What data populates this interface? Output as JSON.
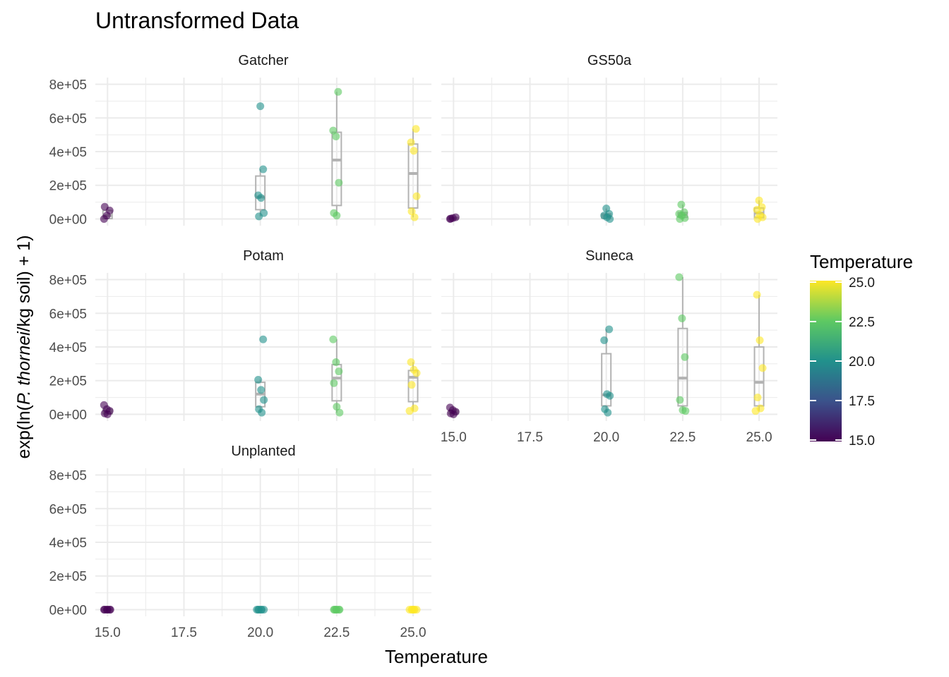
{
  "chart_data": {
    "type": "scatter",
    "title": "Untransformed Data",
    "xlabel": "Temperature",
    "ylabel_parts": [
      "exp(ln(",
      "P. thornei",
      "/kg soil) + 1)"
    ],
    "x_ticks": [
      "15.0",
      "17.5",
      "20.0",
      "22.5",
      "25.0"
    ],
    "y_ticks": [
      "0e+00",
      "2e+05",
      "4e+05",
      "6e+05",
      "8e+05"
    ],
    "xlim": [
      14.6,
      25.6
    ],
    "ylim": [
      -40000,
      840000
    ],
    "grid": true,
    "legend": {
      "title": "Temperature",
      "position": "right",
      "ticks": [
        "15.0",
        "17.5",
        "20.0",
        "22.5",
        "25.0"
      ],
      "range": [
        15,
        25
      ]
    },
    "panels": [
      {
        "name": "Gatcher",
        "points": [
          [
            15,
            0
          ],
          [
            15,
            20000
          ],
          [
            15,
            50000
          ],
          [
            15,
            72000
          ],
          [
            20,
            670000
          ],
          [
            20,
            295000
          ],
          [
            20,
            140000
          ],
          [
            20,
            125000
          ],
          [
            20,
            35000
          ],
          [
            20,
            15000
          ],
          [
            22.5,
            755000
          ],
          [
            22.5,
            525000
          ],
          [
            22.5,
            490000
          ],
          [
            22.5,
            215000
          ],
          [
            22.5,
            35000
          ],
          [
            22.5,
            20000
          ],
          [
            25,
            535000
          ],
          [
            25,
            455000
          ],
          [
            25,
            405000
          ],
          [
            25,
            135000
          ],
          [
            25,
            45000
          ],
          [
            25,
            10000
          ]
        ],
        "boxes": [
          {
            "x": 15,
            "q1": 2000,
            "median": 20000,
            "q3": 50000,
            "lo": 0,
            "hi": 72000
          },
          {
            "x": 20,
            "q1": 55000,
            "median": 130000,
            "q3": 255000,
            "lo": 15000,
            "hi": 295000
          },
          {
            "x": 22.5,
            "q1": 80000,
            "median": 350000,
            "q3": 515000,
            "lo": 20000,
            "hi": 755000
          },
          {
            "x": 25,
            "q1": 65000,
            "median": 270000,
            "q3": 445000,
            "lo": 10000,
            "hi": 535000
          }
        ]
      },
      {
        "name": "GS50a",
        "points": [
          [
            15,
            0
          ],
          [
            15,
            5000
          ],
          [
            15,
            10000
          ],
          [
            15,
            2000
          ],
          [
            20,
            62000
          ],
          [
            20,
            30000
          ],
          [
            20,
            20000
          ],
          [
            20,
            10000
          ],
          [
            20,
            0
          ],
          [
            22.5,
            85000
          ],
          [
            22.5,
            40000
          ],
          [
            22.5,
            30000
          ],
          [
            22.5,
            20000
          ],
          [
            22.5,
            5000
          ],
          [
            22.5,
            0
          ],
          [
            25,
            110000
          ],
          [
            25,
            70000
          ],
          [
            25,
            55000
          ],
          [
            25,
            25000
          ],
          [
            25,
            10000
          ],
          [
            25,
            0
          ]
        ],
        "boxes": [
          {
            "x": 15,
            "q1": 0,
            "median": 3000,
            "q3": 8000,
            "lo": 0,
            "hi": 10000
          },
          {
            "x": 20,
            "q1": 5000,
            "median": 20000,
            "q3": 30000,
            "lo": 0,
            "hi": 62000
          },
          {
            "x": 22.5,
            "q1": 10000,
            "median": 25000,
            "q3": 38000,
            "lo": 0,
            "hi": 85000
          },
          {
            "x": 25,
            "q1": 8000,
            "median": 35000,
            "q3": 65000,
            "lo": 0,
            "hi": 110000
          }
        ]
      },
      {
        "name": "Potam",
        "points": [
          [
            15,
            55000
          ],
          [
            15,
            30000
          ],
          [
            15,
            20000
          ],
          [
            15,
            5000
          ],
          [
            15,
            0
          ],
          [
            20,
            445000
          ],
          [
            20,
            205000
          ],
          [
            20,
            145000
          ],
          [
            20,
            85000
          ],
          [
            20,
            30000
          ],
          [
            20,
            10000
          ],
          [
            22.5,
            445000
          ],
          [
            22.5,
            310000
          ],
          [
            22.5,
            255000
          ],
          [
            22.5,
            185000
          ],
          [
            22.5,
            45000
          ],
          [
            22.5,
            10000
          ],
          [
            25,
            310000
          ],
          [
            25,
            265000
          ],
          [
            25,
            245000
          ],
          [
            25,
            175000
          ],
          [
            25,
            35000
          ],
          [
            25,
            20000
          ]
        ],
        "boxes": [
          {
            "x": 15,
            "q1": 2000,
            "median": 15000,
            "q3": 30000,
            "lo": 0,
            "hi": 55000
          },
          {
            "x": 20,
            "q1": 45000,
            "median": 120000,
            "q3": 190000,
            "lo": 10000,
            "hi": 205000
          },
          {
            "x": 22.5,
            "q1": 80000,
            "median": 215000,
            "q3": 295000,
            "lo": 10000,
            "hi": 445000
          },
          {
            "x": 25,
            "q1": 75000,
            "median": 220000,
            "q3": 260000,
            "lo": 20000,
            "hi": 310000
          }
        ]
      },
      {
        "name": "Suneca",
        "points": [
          [
            15,
            40000
          ],
          [
            15,
            25000
          ],
          [
            15,
            15000
          ],
          [
            15,
            5000
          ],
          [
            15,
            0
          ],
          [
            20,
            505000
          ],
          [
            20,
            440000
          ],
          [
            20,
            120000
          ],
          [
            20,
            110000
          ],
          [
            20,
            30000
          ],
          [
            20,
            10000
          ],
          [
            22.5,
            815000
          ],
          [
            22.5,
            570000
          ],
          [
            22.5,
            340000
          ],
          [
            22.5,
            85000
          ],
          [
            22.5,
            25000
          ],
          [
            22.5,
            20000
          ],
          [
            25,
            710000
          ],
          [
            25,
            440000
          ],
          [
            25,
            275000
          ],
          [
            25,
            100000
          ],
          [
            25,
            35000
          ],
          [
            25,
            20000
          ]
        ],
        "boxes": [
          {
            "x": 15,
            "q1": 3000,
            "median": 10000,
            "q3": 25000,
            "lo": 0,
            "hi": 40000
          },
          {
            "x": 20,
            "q1": 50000,
            "median": 115000,
            "q3": 360000,
            "lo": 10000,
            "hi": 505000
          },
          {
            "x": 22.5,
            "q1": 50000,
            "median": 215000,
            "q3": 510000,
            "lo": 20000,
            "hi": 815000
          },
          {
            "x": 25,
            "q1": 50000,
            "median": 190000,
            "q3": 400000,
            "lo": 20000,
            "hi": 710000
          }
        ]
      },
      {
        "name": "Unplanted",
        "points": [
          [
            15,
            0
          ],
          [
            15,
            0
          ],
          [
            15,
            0
          ],
          [
            15,
            0
          ],
          [
            15,
            0
          ],
          [
            15,
            0
          ],
          [
            20,
            0
          ],
          [
            20,
            0
          ],
          [
            20,
            0
          ],
          [
            20,
            0
          ],
          [
            20,
            0
          ],
          [
            20,
            0
          ],
          [
            22.5,
            0
          ],
          [
            22.5,
            0
          ],
          [
            22.5,
            0
          ],
          [
            22.5,
            0
          ],
          [
            22.5,
            0
          ],
          [
            22.5,
            0
          ],
          [
            25,
            0
          ],
          [
            25,
            0
          ],
          [
            25,
            0
          ],
          [
            25,
            0
          ],
          [
            25,
            0
          ],
          [
            25,
            0
          ]
        ],
        "boxes": []
      }
    ]
  },
  "colors": {
    "grid": "#ebebeb",
    "box": "#b3b3b3",
    "text": "#4d4d4d",
    "title": "#000000",
    "viridis": [
      "#440154",
      "#3b528b",
      "#21918c",
      "#5ec962",
      "#fde725"
    ]
  }
}
